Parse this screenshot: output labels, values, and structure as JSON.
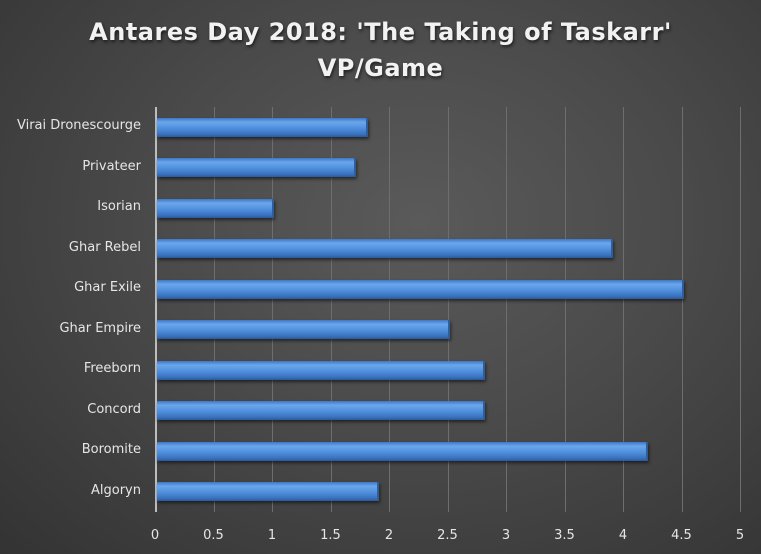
{
  "chart_data": {
    "type": "bar",
    "orientation": "horizontal",
    "title": "Antares Day 2018: 'The Taking of Taskarr'",
    "subtitle": "VP/Game",
    "categories": [
      "Virai Dronescourge",
      "Privateer",
      "Isorian",
      "Ghar Rebel",
      "Ghar Exile",
      "Ghar Empire",
      "Freeborn",
      "Concord",
      "Boromite",
      "Algoryn"
    ],
    "values": [
      1.8,
      1.7,
      1.0,
      3.9,
      4.5,
      2.5,
      2.8,
      2.8,
      4.2,
      1.9
    ],
    "xlabel": "",
    "ylabel": "",
    "xlim": [
      0,
      5
    ],
    "x_ticks": [
      "0",
      "0.5",
      "1",
      "1.5",
      "2",
      "2.5",
      "3",
      "3.5",
      "4",
      "4.5",
      "5"
    ],
    "grid": true,
    "legend": "none",
    "bar_color": "#4f8fdc",
    "background_color": "#4a4a4a"
  }
}
